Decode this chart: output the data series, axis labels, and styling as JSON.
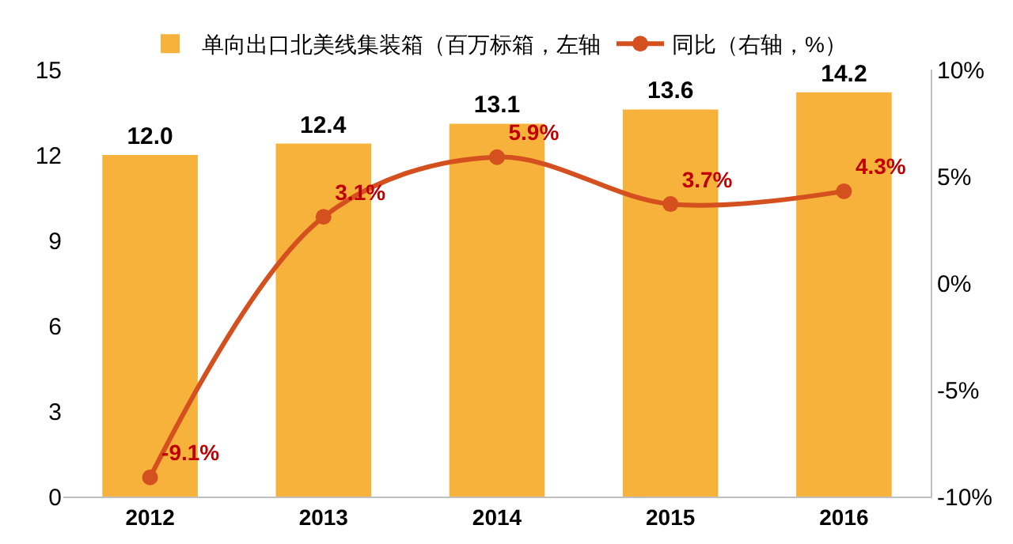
{
  "chart_data": {
    "type": "bar",
    "categories": [
      "2012",
      "2013",
      "2014",
      "2015",
      "2016"
    ],
    "series": [
      {
        "name": "单向出口北美线集装箱（百万标箱，左轴",
        "color": "#f7b23b",
        "values": [
          12.0,
          12.4,
          13.1,
          13.6,
          14.2
        ],
        "value_labels": [
          "12.0",
          "12.4",
          "13.1",
          "13.6",
          "14.2"
        ]
      },
      {
        "name": "同比（右轴，%）",
        "type": "line",
        "axis": "y2",
        "color": "#d4501e",
        "marker": "circle",
        "values": [
          -9.1,
          3.1,
          5.9,
          3.7,
          4.3
        ],
        "value_labels": [
          "-9.1%",
          "3.1%",
          "5.9%",
          "3.7%",
          "4.3%"
        ]
      }
    ],
    "ylim": [
      0,
      15
    ],
    "yticks": [
      0,
      3,
      6,
      9,
      12,
      15
    ],
    "y2lim": [
      -10,
      10
    ],
    "y2ticks": [
      {
        "value": -10,
        "label": "-10%"
      },
      {
        "value": -5,
        "label": "-5%"
      },
      {
        "value": 0,
        "label": "0%"
      },
      {
        "value": 5,
        "label": "5%"
      },
      {
        "value": 10,
        "label": "10%"
      }
    ],
    "grid": false,
    "legend": "top"
  }
}
